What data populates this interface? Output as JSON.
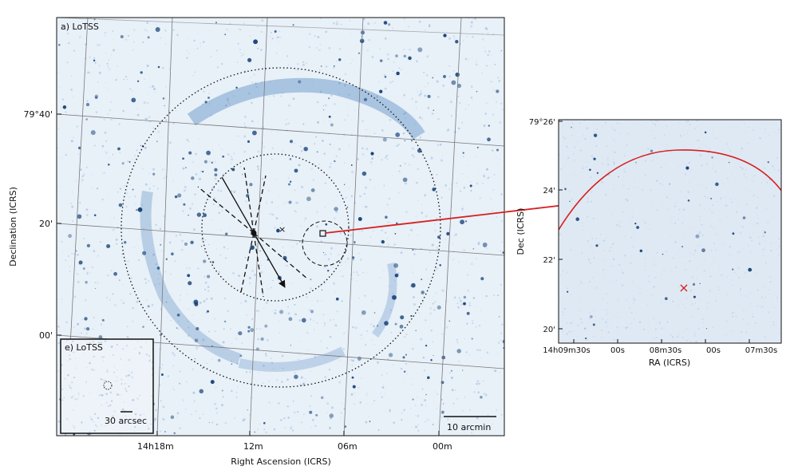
{
  "main_panel": {
    "label": "a) LoTSS",
    "xlabel": "Right Ascension (ICRS)",
    "ylabel": "Declination (ICRS)",
    "ra_ticks": [
      "14h18m",
      "12m",
      "06m",
      "00m"
    ],
    "dec_ticks": [
      "79°40'",
      "20'",
      "00'"
    ],
    "scalebar": "10 arcmin"
  },
  "inset_panel": {
    "label": "e) LoTSS",
    "scalebar": "30 arcsec"
  },
  "zoom_panel": {
    "xlabel": "RA (ICRS)",
    "ylabel": "Dec (ICRS)",
    "ra_ticks": [
      "14h09m30s",
      "00s",
      "08m30s",
      "00s",
      "07m30s"
    ],
    "dec_ticks": [
      "79°26'",
      "24'",
      "22'",
      "20'"
    ]
  },
  "colors": {
    "map_background": "#e8f0f8",
    "source_color": "#0d3b73",
    "emission_color": "#5b8fc4",
    "arrow_red": "#d62020",
    "grid": "#7a7a7a"
  }
}
